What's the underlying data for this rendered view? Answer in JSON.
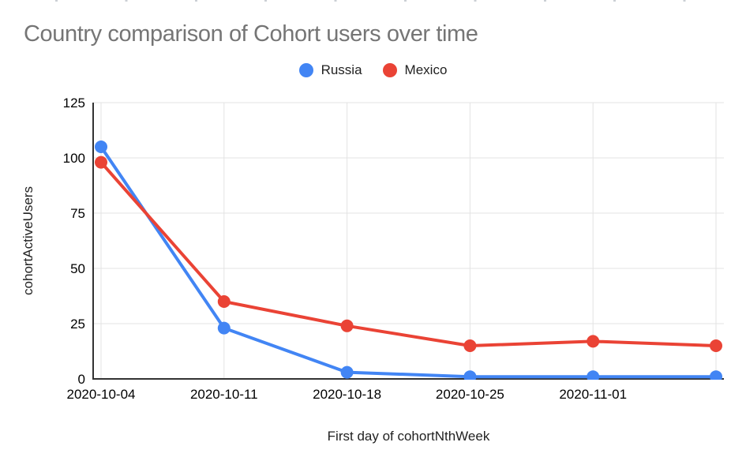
{
  "page": {
    "background": "#ffffff"
  },
  "chart_data": {
    "type": "line",
    "title": "Country comparison of Cohort users over time",
    "xlabel": "First day of cohortNthWeek",
    "ylabel": "cohortActiveUsers",
    "x_tick_labels": [
      "2020-10-04",
      "2020-10-11",
      "2020-10-18",
      "2020-10-25",
      "2020-11-01"
    ],
    "num_points": 6,
    "series": [
      {
        "name": "Russia",
        "color": "#4285F4",
        "values": [
          105,
          23,
          3,
          1,
          1,
          1
        ]
      },
      {
        "name": "Mexico",
        "color": "#EA4335",
        "values": [
          98,
          35,
          24,
          15,
          17,
          15
        ]
      }
    ],
    "y_ticks": [
      0,
      25,
      50,
      75,
      100,
      125
    ],
    "ylim": [
      0,
      125
    ],
    "grid": true,
    "legend_position": "top",
    "title_color": "#757575",
    "axis_text_color": "#000000",
    "axis_title_color": "#222222",
    "gridline_color": "#e3e3e3",
    "axis_line_color": "#333333"
  }
}
